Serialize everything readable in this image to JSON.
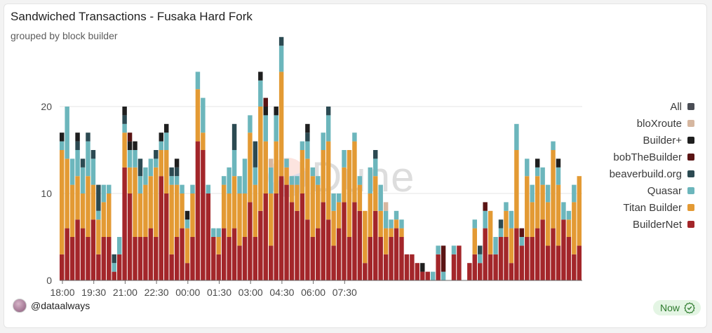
{
  "header": {
    "title": "Sandwiched Transactions - Fusaka Hard Fork",
    "subtitle": "grouped by block builder"
  },
  "watermark": "Dune",
  "footer": {
    "user": "@dataalways",
    "status": "Now"
  },
  "colors": {
    "All": "#4a4d55",
    "bloXroute": "#d6b7a0",
    "Builder+": "#1f1f1f",
    "bobTheBuilder": "#5a1414",
    "beaverbuild.org": "#2c4a52",
    "Quasar": "#6cb6bc",
    "Titan Builder": "#e39a34",
    "BuilderNet": "#a3262a"
  },
  "chart_data": {
    "type": "bar",
    "stacked": true,
    "title": "Sandwiched Transactions - Fusaka Hard Fork",
    "subtitle": "grouped by block builder",
    "xlabel": "",
    "ylabel": "",
    "ylim": [
      0,
      25
    ],
    "yticks": [
      0,
      10,
      20
    ],
    "x_start": "18:00",
    "x_interval_minutes": 15,
    "x_ticks": [
      "18:00",
      "19:30",
      "21:00",
      "22:30",
      "00:00",
      "01:30",
      "03:00",
      "04:30",
      "06:00",
      "07:30"
    ],
    "grid": true,
    "legend_position": "right",
    "legend": [
      "All",
      "bloXroute",
      "Builder+",
      "bobTheBuilder",
      "beaverbuild.org",
      "Quasar",
      "Titan Builder",
      "BuilderNet"
    ],
    "series": [
      {
        "name": "BuilderNet",
        "values": [
          3,
          6,
          5,
          7,
          6,
          5,
          7,
          3,
          5,
          5,
          1,
          3,
          13,
          10,
          5,
          5,
          5,
          6,
          5,
          12,
          10,
          3,
          5,
          6,
          2,
          5,
          16,
          15,
          10,
          5,
          3,
          6,
          5,
          6,
          4,
          5,
          9,
          5,
          8,
          10,
          4,
          10,
          12,
          11,
          9,
          8,
          10,
          7,
          5,
          6,
          9,
          7,
          4,
          6,
          9,
          5,
          9,
          8,
          2,
          5,
          8,
          5,
          3,
          5,
          6,
          5,
          3,
          3,
          2,
          1,
          1,
          0,
          3,
          0,
          0,
          3,
          4,
          0,
          2,
          3,
          2,
          6,
          3,
          3,
          5,
          5,
          2,
          6,
          4,
          5,
          5,
          6,
          7,
          4,
          6,
          4,
          7,
          5,
          3,
          4
        ]
      },
      {
        "name": "Titan Builder",
        "values": [
          12,
          8,
          6,
          5,
          4,
          7,
          4,
          4,
          4,
          5,
          0,
          0,
          4,
          3,
          8,
          5,
          6,
          6,
          8,
          3,
          5,
          8,
          6,
          4,
          4,
          5,
          6,
          2,
          0,
          0,
          2,
          5,
          5,
          6,
          6,
          5,
          8,
          6,
          12,
          6,
          6,
          6,
          12,
          2,
          2,
          3,
          5,
          7,
          7,
          5,
          6,
          9,
          4,
          3,
          4,
          10,
          7,
          3,
          6,
          5,
          4,
          3,
          3,
          1,
          1,
          1,
          0,
          0,
          0,
          0,
          0,
          0,
          0,
          0,
          0,
          0,
          0,
          0,
          0,
          3,
          0,
          0,
          5,
          0,
          0,
          3,
          4,
          9,
          0,
          7,
          4,
          6,
          4,
          5,
          9,
          7,
          0,
          2,
          6,
          8
        ]
      },
      {
        "name": "Quasar",
        "values": [
          1,
          6,
          3,
          3,
          3,
          4,
          3,
          1,
          2,
          1,
          1,
          2,
          1,
          2,
          2,
          2,
          2,
          2,
          1,
          1,
          2,
          1,
          1,
          1,
          1,
          1,
          2,
          4,
          1,
          1,
          1,
          1,
          3,
          3,
          2,
          4,
          2,
          2,
          3,
          3,
          3,
          3,
          3,
          1,
          1,
          1,
          1,
          2,
          1,
          1,
          2,
          3,
          2,
          1,
          2,
          0,
          1,
          1,
          0,
          3,
          2,
          3,
          2,
          1,
          1,
          1,
          0,
          0,
          0,
          0,
          0,
          1,
          1,
          1,
          0,
          1,
          0,
          0,
          0,
          1,
          1,
          2,
          0,
          2,
          1,
          1,
          2,
          3,
          1,
          2,
          2,
          1,
          2,
          2,
          1,
          2,
          2,
          1,
          2,
          0
        ]
      },
      {
        "name": "beaverbuild.org",
        "values": [
          0,
          0,
          0,
          1,
          1,
          1,
          1,
          3,
          0,
          0,
          1,
          0,
          1,
          0,
          0,
          2,
          0,
          0,
          1,
          0,
          0,
          1,
          1,
          0,
          0,
          0,
          0,
          0,
          0,
          0,
          0,
          0,
          0,
          3,
          0,
          0,
          0,
          3,
          0,
          0,
          0,
          0,
          1,
          0,
          0,
          0,
          0,
          1,
          0,
          0,
          0,
          1,
          0,
          0,
          0,
          0,
          0,
          0,
          0,
          0,
          1,
          0,
          0,
          0,
          0,
          0,
          0,
          0,
          0,
          0,
          0,
          0,
          0,
          0,
          0,
          0,
          0,
          0,
          0,
          0,
          1,
          0,
          0,
          0,
          1,
          0,
          0,
          0,
          0,
          0,
          0,
          0,
          0,
          0,
          0,
          0,
          0,
          0,
          0,
          0
        ]
      },
      {
        "name": "Builder+",
        "values": [
          1,
          0,
          0,
          1,
          0,
          0,
          0,
          0,
          0,
          0,
          0,
          0,
          1,
          1,
          1,
          0,
          0,
          0,
          0,
          1,
          1,
          0,
          1,
          0,
          1,
          0,
          0,
          0,
          0,
          0,
          0,
          0,
          0,
          0,
          0,
          0,
          0,
          0,
          1,
          1,
          0,
          1,
          0,
          0,
          0,
          0,
          0,
          1,
          0,
          0,
          0,
          0,
          0,
          0,
          0,
          0,
          0,
          0,
          0,
          0,
          0,
          0,
          0,
          0,
          0,
          0,
          0,
          0,
          0,
          1,
          0,
          0,
          0,
          0,
          0,
          0,
          0,
          0,
          0,
          0,
          0,
          0,
          0,
          0,
          0,
          0,
          0,
          0,
          0,
          0,
          0,
          1,
          0,
          0,
          0,
          1,
          0,
          0,
          0,
          0
        ]
      },
      {
        "name": "bobTheBuilder",
        "values": [
          0,
          0,
          0,
          0,
          0,
          0,
          0,
          0,
          0,
          0,
          0,
          0,
          0,
          1,
          0,
          0,
          0,
          0,
          0,
          0,
          0,
          0,
          0,
          0,
          0,
          0,
          0,
          0,
          0,
          0,
          0,
          0,
          0,
          0,
          0,
          0,
          0,
          0,
          0,
          1,
          0,
          0,
          0,
          0,
          0,
          0,
          0,
          0,
          0,
          0,
          0,
          0,
          0,
          0,
          0,
          0,
          0,
          0,
          0,
          0,
          0,
          0,
          0,
          0,
          0,
          0,
          0,
          0,
          0,
          0,
          0,
          0,
          0,
          3,
          0,
          0,
          0,
          0,
          0,
          0,
          0,
          1,
          0,
          0,
          0,
          0,
          0,
          0,
          1,
          0,
          0,
          0,
          0,
          0,
          0,
          0,
          0,
          0,
          0,
          0
        ]
      },
      {
        "name": "bloXroute",
        "values": [
          0,
          0,
          0,
          0,
          0,
          0,
          0,
          0,
          0,
          0,
          0,
          0,
          0,
          0,
          0,
          0,
          0,
          0,
          0,
          0,
          0,
          0,
          0,
          0,
          0,
          0,
          0,
          0,
          0,
          0,
          0,
          0,
          0,
          0,
          0,
          0,
          0,
          0,
          0,
          0,
          1,
          0,
          0,
          0,
          0,
          0,
          0,
          0,
          0,
          0,
          0,
          0,
          0,
          0,
          0,
          0,
          0,
          0,
          0,
          0,
          0,
          0,
          1,
          0,
          0,
          0,
          0,
          0,
          0,
          0,
          0,
          0,
          0,
          0,
          0,
          0,
          0,
          0,
          0,
          0,
          0,
          0,
          0,
          0,
          0,
          0,
          0,
          0,
          0,
          0,
          0,
          0,
          0,
          0,
          0,
          0,
          0,
          0,
          0,
          0
        ]
      }
    ]
  }
}
